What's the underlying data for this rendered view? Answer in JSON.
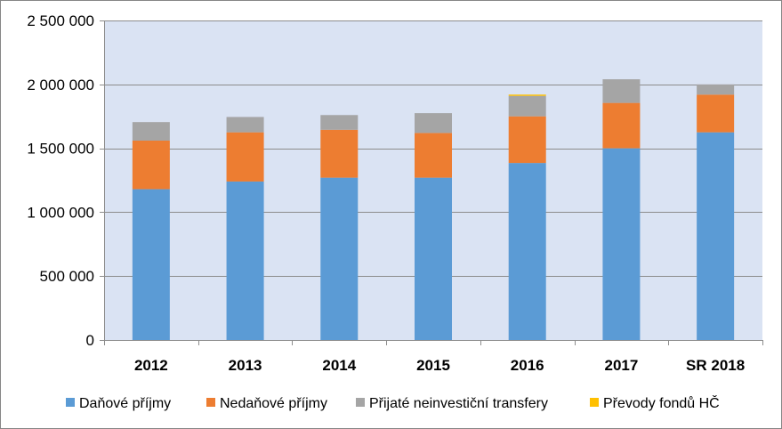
{
  "chart_data": {
    "type": "bar",
    "stacked": true,
    "categories": [
      "2012",
      "2013",
      "2014",
      "2015",
      "2016",
      "2017",
      "SR 2018"
    ],
    "series": [
      {
        "name": "Daňové příjmy",
        "color": "#5B9BD5",
        "values": [
          1180000,
          1240000,
          1270000,
          1270000,
          1385000,
          1500000,
          1625000
        ]
      },
      {
        "name": "Nedaňové příjmy",
        "color": "#ED7D31",
        "values": [
          380000,
          385000,
          375000,
          350000,
          365000,
          355000,
          295000
        ]
      },
      {
        "name": "Přijaté neinvestiční transfery",
        "color": "#A5A5A5",
        "values": [
          145000,
          120000,
          115000,
          155000,
          160000,
          185000,
          80000
        ]
      },
      {
        "name": "Převody fondů HČ",
        "color": "#FFC000",
        "values": [
          0,
          0,
          0,
          0,
          10000,
          0,
          0
        ]
      }
    ],
    "ylim": [
      0,
      2500000
    ],
    "yticks": [
      0,
      500000,
      1000000,
      1500000,
      2000000,
      2500000
    ],
    "ytick_labels": [
      "0",
      "500 000",
      "1 000 000",
      "1 500 000",
      "2 000 000",
      "2 500 000"
    ],
    "grid": true,
    "plot_background": "#DAE3F3",
    "legend_position": "bottom"
  }
}
